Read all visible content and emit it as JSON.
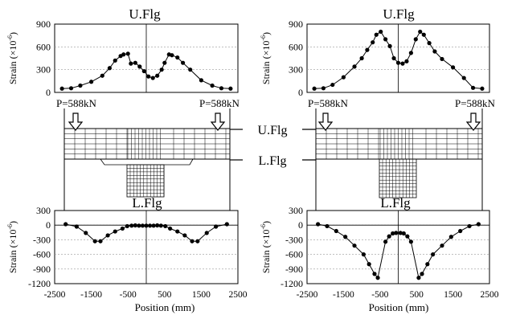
{
  "labels": {
    "uflg": "U.Flg",
    "lflg": "L.Flg",
    "load_left": "P=588kN",
    "load_right": "P=588kN",
    "ylabel": "Strain (×10",
    "ylabel_exp": "-6",
    "ylabel_close": ")",
    "xlabel": "Position (mm)"
  },
  "chart_data": [
    {
      "type": "line",
      "panel": "left-upper",
      "title": "U.Flg",
      "ylim": [
        0,
        900
      ],
      "yticks": [
        "0",
        "300",
        "600",
        "900"
      ],
      "x": [
        -2300,
        -2050,
        -1800,
        -1500,
        -1200,
        -1000,
        -850,
        -700,
        -620,
        -500,
        -420,
        -300,
        -180,
        -60,
        60,
        180,
        300,
        420,
        500,
        620,
        700,
        850,
        1000,
        1200,
        1500,
        1800,
        2050,
        2300
      ],
      "values": [
        50,
        55,
        90,
        140,
        220,
        320,
        420,
        480,
        500,
        510,
        380,
        390,
        340,
        280,
        210,
        190,
        220,
        300,
        390,
        500,
        490,
        460,
        390,
        300,
        160,
        90,
        55,
        50
      ]
    },
    {
      "type": "line",
      "panel": "right-upper",
      "title": "U.Flg",
      "ylim": [
        0,
        900
      ],
      "yticks": [
        "0",
        "300",
        "600",
        "900"
      ],
      "x": [
        -2300,
        -2050,
        -1800,
        -1500,
        -1200,
        -1000,
        -850,
        -700,
        -600,
        -480,
        -350,
        -230,
        -120,
        0,
        120,
        230,
        350,
        480,
        600,
        700,
        850,
        1000,
        1200,
        1500,
        1800,
        2050,
        2300
      ],
      "values": [
        50,
        55,
        100,
        200,
        340,
        450,
        560,
        660,
        760,
        800,
        700,
        610,
        450,
        390,
        380,
        410,
        520,
        700,
        800,
        760,
        650,
        540,
        440,
        330,
        190,
        60,
        50
      ]
    },
    {
      "type": "line",
      "panel": "left-lower",
      "title": "L.Flg",
      "ylim": [
        -1200,
        300
      ],
      "yticks": [
        "300",
        "0",
        "-300",
        "-600",
        "-900",
        "-1200"
      ],
      "xlim": [
        -2500,
        2500
      ],
      "xticks": [
        "-2500",
        "-1500",
        "-500",
        "500",
        "1500",
        "2500"
      ],
      "x": [
        -2200,
        -1900,
        -1650,
        -1400,
        -1250,
        -1050,
        -850,
        -650,
        -520,
        -400,
        -300,
        -200,
        -100,
        0,
        100,
        200,
        300,
        400,
        520,
        650,
        850,
        1050,
        1250,
        1400,
        1650,
        1900,
        2200
      ],
      "values": [
        20,
        -30,
        -160,
        -330,
        -330,
        -210,
        -130,
        -70,
        -20,
        -10,
        -5,
        -10,
        -10,
        -10,
        -10,
        -10,
        -5,
        -10,
        -20,
        -70,
        -130,
        -210,
        -330,
        -330,
        -160,
        -30,
        20
      ]
    },
    {
      "type": "line",
      "panel": "right-lower",
      "title": "L.Flg",
      "ylim": [
        -1200,
        300
      ],
      "yticks": [
        "300",
        "0",
        "-300",
        "-600",
        "-900",
        "-1200"
      ],
      "xlim": [
        -2500,
        2500
      ],
      "xticks": [
        "-2500",
        "-1500",
        "-500",
        "500",
        "1500",
        "2500"
      ],
      "x": [
        -2200,
        -1950,
        -1700,
        -1450,
        -1200,
        -950,
        -800,
        -650,
        -560,
        -350,
        -250,
        -150,
        -60,
        60,
        150,
        250,
        350,
        560,
        650,
        800,
        950,
        1200,
        1450,
        1700,
        1950,
        2200
      ],
      "values": [
        20,
        -20,
        -120,
        -240,
        -420,
        -600,
        -800,
        -1000,
        -1080,
        -340,
        -230,
        -170,
        -160,
        -160,
        -170,
        -230,
        -340,
        -1080,
        -1000,
        -800,
        -600,
        -420,
        -240,
        -120,
        -20,
        20
      ]
    }
  ]
}
